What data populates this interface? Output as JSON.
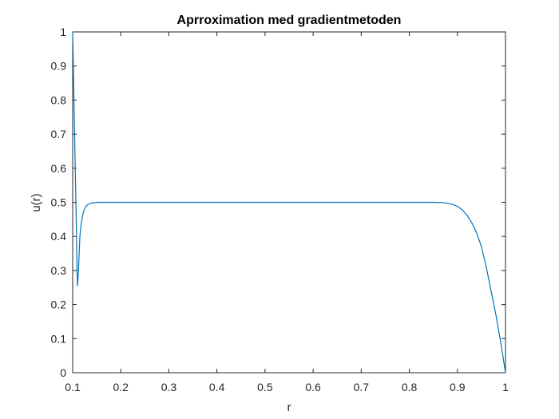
{
  "chart_data": {
    "type": "line",
    "title": "Aprroximation med gradientmetoden",
    "xlabel": "r",
    "ylabel": "u(r)",
    "xlim": [
      0.1,
      1
    ],
    "ylim": [
      0,
      1
    ],
    "xticks": [
      "0.1",
      "0.2",
      "0.3",
      "0.4",
      "0.5",
      "0.6",
      "0.7",
      "0.8",
      "0.9",
      "1"
    ],
    "yticks": [
      "0",
      "0.1",
      "0.2",
      "0.3",
      "0.4",
      "0.5",
      "0.6",
      "0.7",
      "0.8",
      "0.9",
      "1"
    ],
    "grid": false,
    "line_color": "#0072BD",
    "series": [
      {
        "x": [
          0.1,
          0.101,
          0.102,
          0.104,
          0.106,
          0.108,
          0.109,
          0.11,
          0.112,
          0.115,
          0.118,
          0.122,
          0.126,
          0.13,
          0.135,
          0.14,
          0.145,
          0.15,
          0.16,
          0.17,
          0.2,
          0.3,
          0.4,
          0.5,
          0.6,
          0.7,
          0.8,
          0.85,
          0.87,
          0.88,
          0.89,
          0.9,
          0.91,
          0.92,
          0.93,
          0.94,
          0.95,
          0.96,
          0.97,
          0.98,
          0.99,
          1.0
        ],
        "y": [
          1.0,
          0.93,
          0.85,
          0.7,
          0.55,
          0.4,
          0.3,
          0.255,
          0.3,
          0.4,
          0.44,
          0.47,
          0.485,
          0.492,
          0.496,
          0.498,
          0.499,
          0.5,
          0.5,
          0.5,
          0.5,
          0.5,
          0.5,
          0.5,
          0.5,
          0.5,
          0.5,
          0.5,
          0.499,
          0.497,
          0.494,
          0.488,
          0.478,
          0.462,
          0.44,
          0.41,
          0.37,
          0.31,
          0.24,
          0.17,
          0.09,
          0.0
        ]
      }
    ]
  }
}
